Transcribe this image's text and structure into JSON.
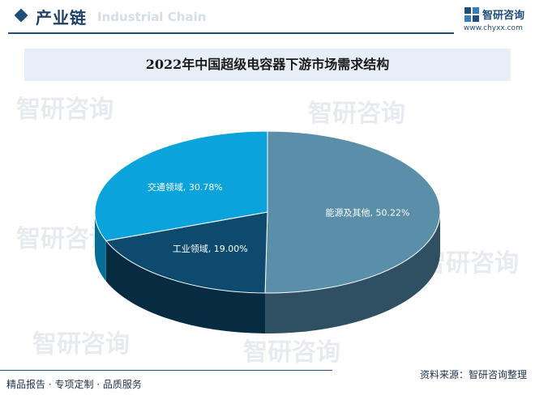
{
  "header": {
    "title": "产业链",
    "ghost_text": "Industrial Chain"
  },
  "brand": {
    "name": "智研咨询",
    "url": "www.chyxx.com",
    "color": "#1f4e79"
  },
  "watermark_text": "智研咨询",
  "chart_data": {
    "type": "pie",
    "title": "2022年中国超级电容器下游市场需求结构",
    "unit": "%",
    "slices": [
      {
        "label": "能源及其他",
        "value": 50.22,
        "display": "50.22%",
        "color": "#5b8ea8",
        "side_color": "#2f4f62"
      },
      {
        "label": "工业领域",
        "value": 19.0,
        "display": "19.00%",
        "color": "#0d4a6e",
        "side_color": "#072c42"
      },
      {
        "label": "交通领域",
        "value": 30.78,
        "display": "30.78%",
        "color": "#0aa3dc",
        "side_color": "#066e94"
      }
    ]
  },
  "footer": {
    "left": "精品报告 · 专项定制 · 品质服务",
    "source": "资料来源：智研咨询整理"
  }
}
